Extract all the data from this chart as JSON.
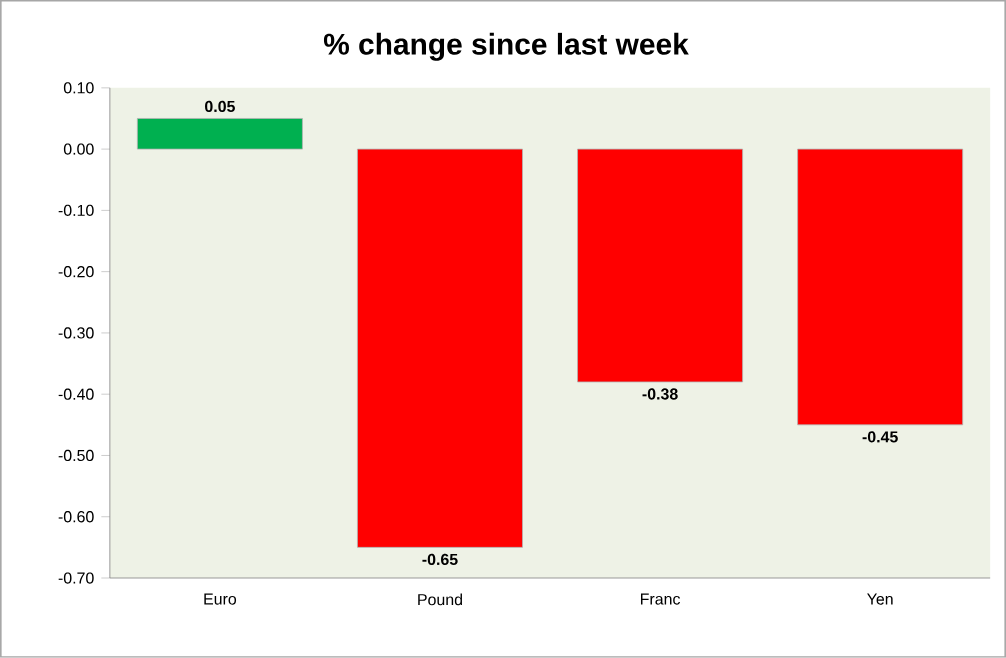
{
  "chart_data": {
    "type": "bar",
    "title": "% change since last week",
    "categories": [
      "Euro",
      "Pound",
      "Franc",
      "Yen"
    ],
    "values": [
      0.05,
      -0.65,
      -0.38,
      -0.45
    ],
    "colors": [
      "#00b050",
      "#ff0000",
      "#ff0000",
      "#ff0000"
    ],
    "ylim": [
      -0.7,
      0.1
    ],
    "yticks": [
      {
        "value": 0.1,
        "label": "0.10"
      },
      {
        "value": 0,
        "label": "0.00"
      },
      {
        "value": -0.1,
        "label": "-0.10"
      },
      {
        "value": -0.2,
        "label": "-0.20"
      },
      {
        "value": -0.3,
        "label": "-0.30"
      },
      {
        "value": -0.4,
        "label": "-0.40"
      },
      {
        "value": -0.5,
        "label": "-0.50"
      },
      {
        "value": -0.6,
        "label": "-0.60"
      },
      {
        "value": -0.7,
        "label": "-0.70"
      }
    ],
    "data_labels": true
  }
}
